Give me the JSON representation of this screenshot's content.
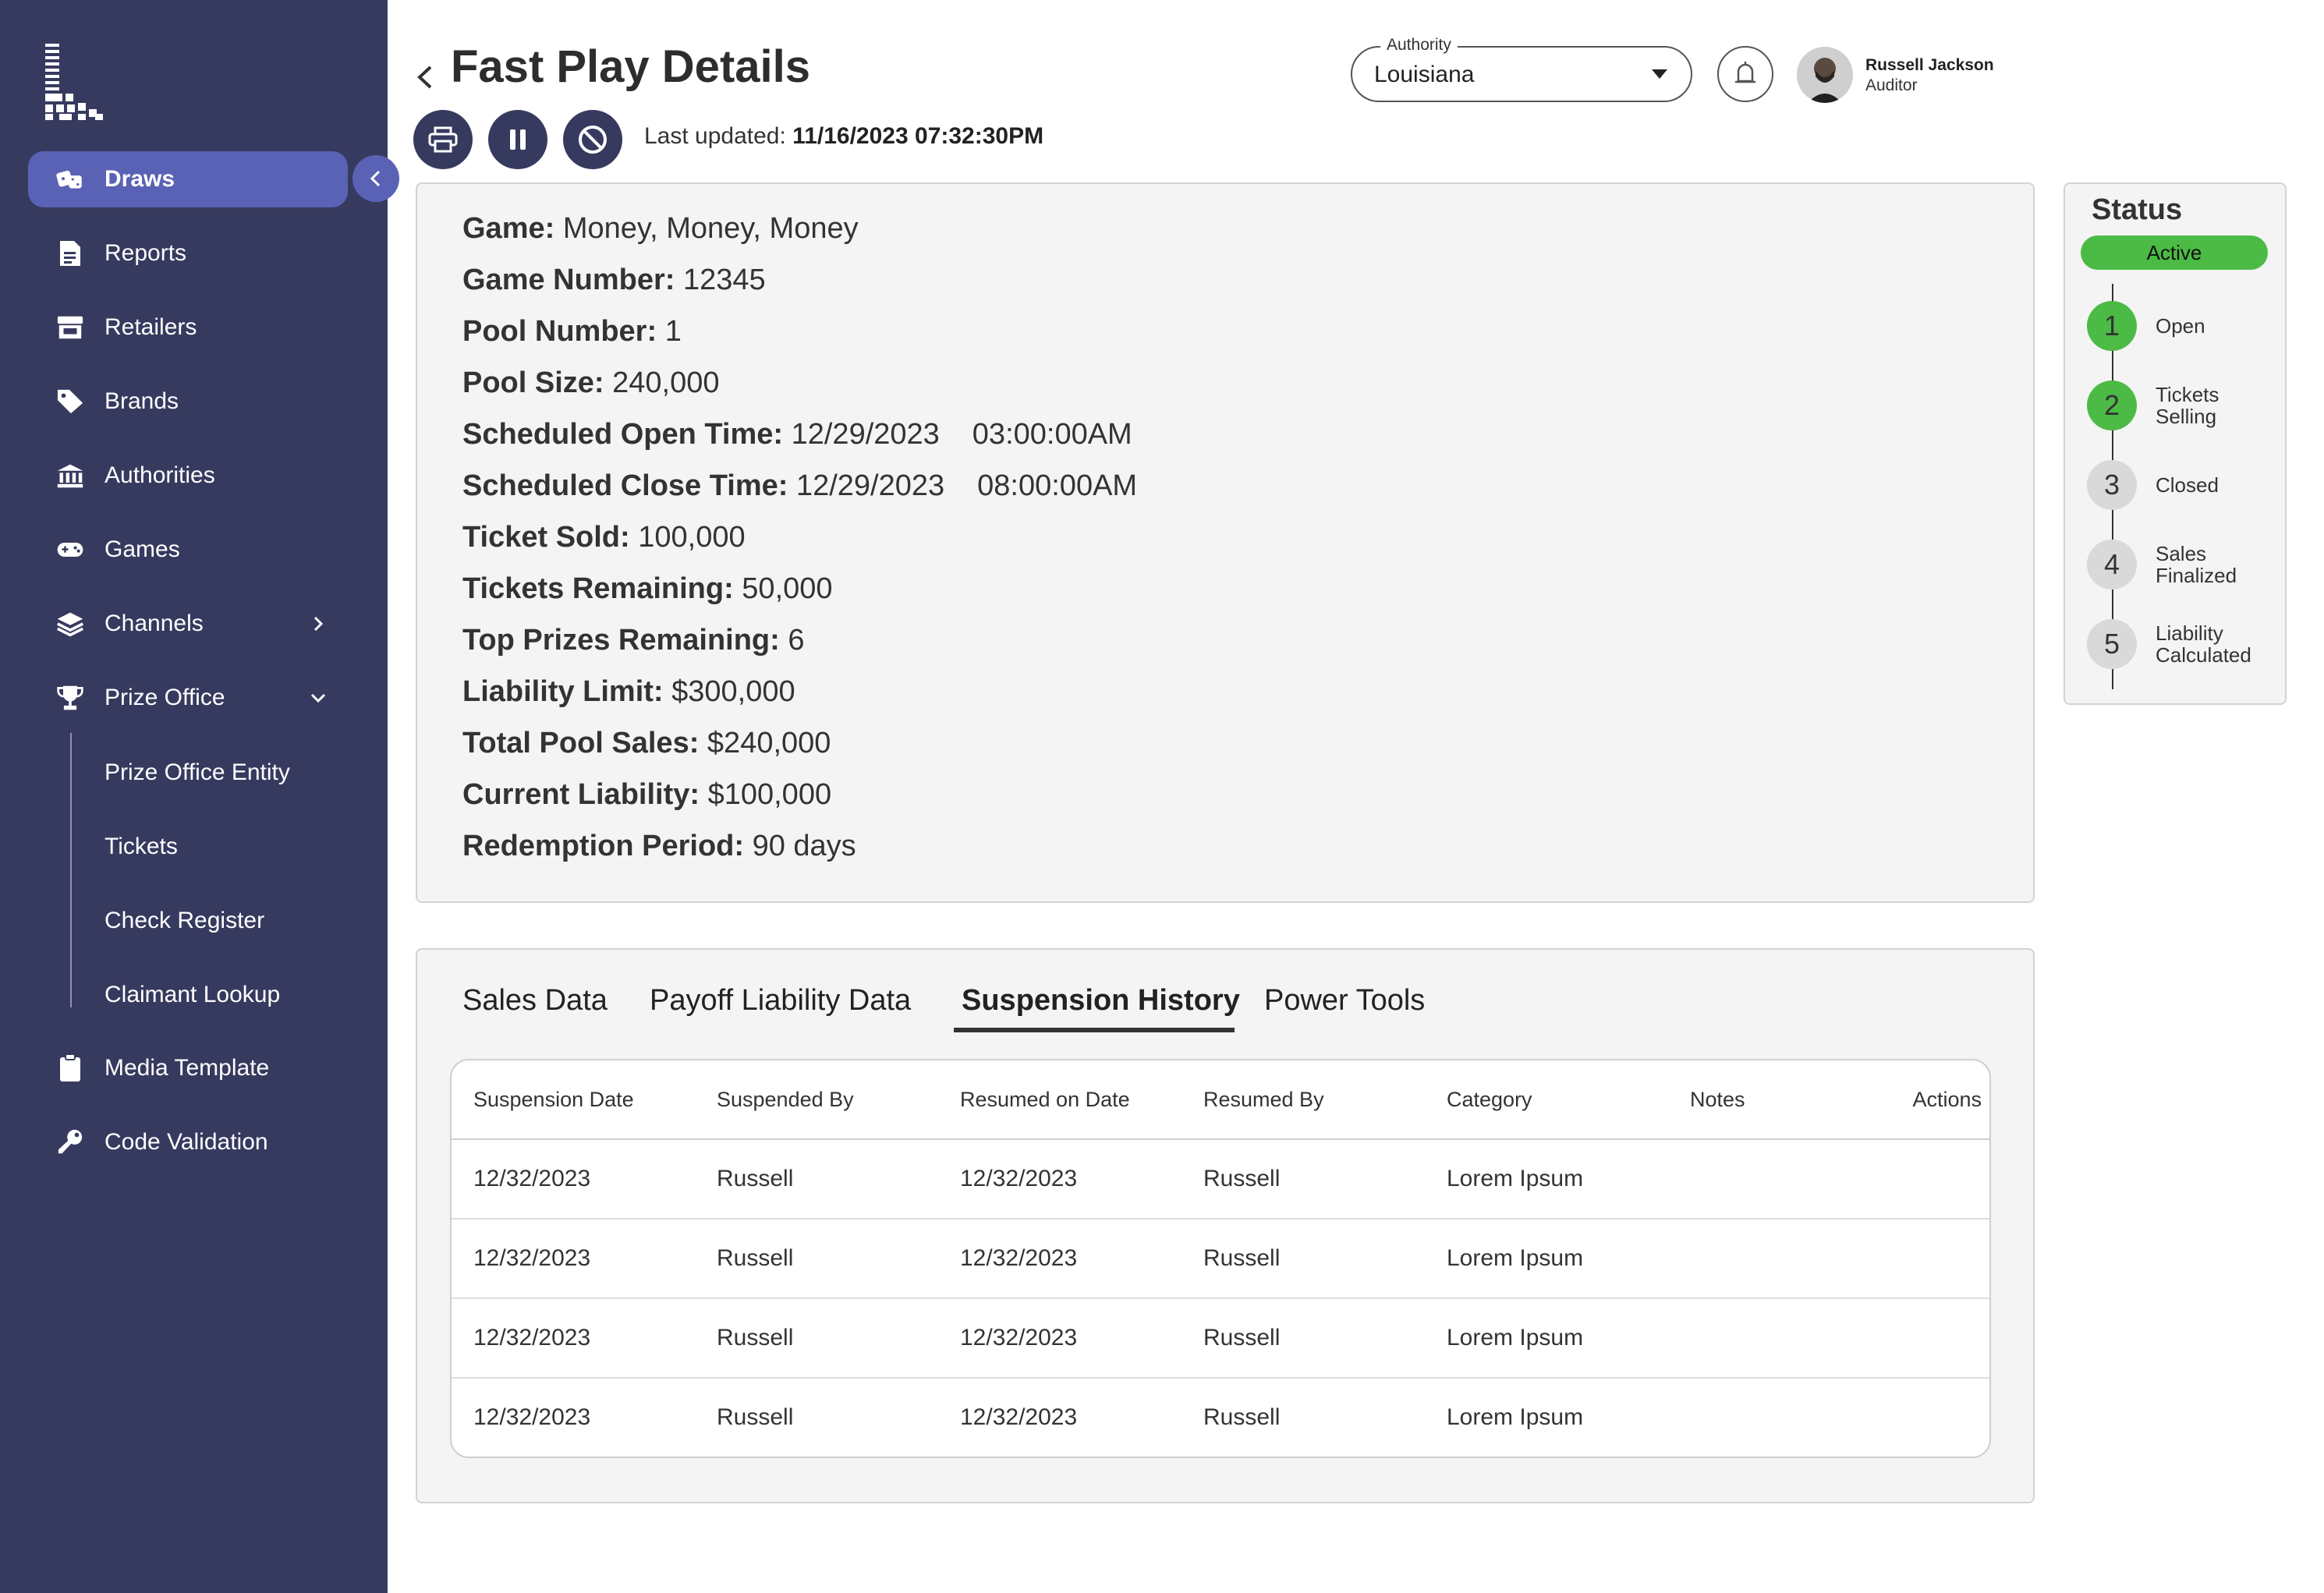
{
  "nav": {
    "items": [
      {
        "label": "Draws",
        "icon": "dice-icon",
        "active": true
      },
      {
        "label": "Reports",
        "icon": "document-icon"
      },
      {
        "label": "Retailers",
        "icon": "store-icon"
      },
      {
        "label": "Brands",
        "icon": "tag-icon"
      },
      {
        "label": "Authorities",
        "icon": "bank-icon"
      },
      {
        "label": "Games",
        "icon": "gamepad-icon"
      },
      {
        "label": "Channels",
        "icon": "layers-icon"
      },
      {
        "label": "Prize Office",
        "icon": "trophy-icon"
      }
    ],
    "prize_office_sub": [
      "Prize Office Entity",
      "Tickets",
      "Check Register",
      "Claimant Lookup"
    ],
    "bottom_items": [
      {
        "label": "Media Template",
        "icon": "clipboard-icon"
      },
      {
        "label": "Code Validation",
        "icon": "key-icon"
      }
    ]
  },
  "header": {
    "title": "Fast Play Details",
    "last_updated_label": "Last updated:",
    "last_updated_date": "11/16/2023",
    "last_updated_time": "07:32:30PM"
  },
  "authority": {
    "legend": "Authority",
    "value": "Louisiana"
  },
  "user": {
    "name": "Russell Jackson",
    "role": "Auditor"
  },
  "details": [
    {
      "key": "Game:",
      "value": "Money, Money, Money"
    },
    {
      "key": "Game Number:",
      "value": "12345"
    },
    {
      "key": "Pool Number:",
      "value": "1"
    },
    {
      "key": "Pool Size:",
      "value": "240,000"
    },
    {
      "key": "Scheduled Open Time:",
      "value": "12/29/2023",
      "time": "03:00:00AM"
    },
    {
      "key": "Scheduled Close Time:",
      "value": "12/29/2023",
      "time": "08:00:00AM"
    },
    {
      "key": "Ticket Sold:",
      "value": "100,000"
    },
    {
      "key": "Tickets Remaining:",
      "value": "50,000"
    },
    {
      "key": "Top Prizes Remaining:",
      "value": "6"
    },
    {
      "key": "Liability Limit:",
      "value": "$300,000"
    },
    {
      "key": "Total Pool Sales:",
      "value": "$240,000"
    },
    {
      "key": "Current Liability:",
      "value": "$100,000"
    },
    {
      "key": "Redemption Period:",
      "value": "90 days"
    }
  ],
  "status": {
    "title": "Status",
    "badge": "Active",
    "badge_color": "#4cbb45",
    "steps": [
      {
        "num": "1",
        "label": "Open",
        "done": true
      },
      {
        "num": "2",
        "label": "Tickets Selling",
        "done": true
      },
      {
        "num": "3",
        "label": "Closed",
        "done": false
      },
      {
        "num": "4",
        "label": "Sales Finalized",
        "done": false
      },
      {
        "num": "5",
        "label": "Liability Calculated",
        "done": false
      }
    ]
  },
  "tabs": [
    {
      "label": "Sales Data"
    },
    {
      "label": "Payoff Liability Data"
    },
    {
      "label": "Suspension History",
      "active": true
    },
    {
      "label": "Power Tools"
    }
  ],
  "table": {
    "columns": [
      "Suspension Date",
      "Suspended By",
      "Resumed on Date",
      "Resumed By",
      "Category",
      "Notes",
      "Actions"
    ],
    "rows": [
      [
        "12/32/2023",
        "Russell",
        "12/32/2023",
        "Russell",
        "Lorem Ipsum",
        "",
        ""
      ],
      [
        "12/32/2023",
        "Russell",
        "12/32/2023",
        "Russell",
        "Lorem Ipsum",
        "",
        ""
      ],
      [
        "12/32/2023",
        "Russell",
        "12/32/2023",
        "Russell",
        "Lorem Ipsum",
        "",
        ""
      ],
      [
        "12/32/2023",
        "Russell",
        "12/32/2023",
        "Russell",
        "Lorem Ipsum",
        "",
        ""
      ]
    ]
  },
  "colors": {
    "sidebar": "#373a5f",
    "active_nav": "#5a62b5",
    "status_green": "#4cbb45"
  }
}
